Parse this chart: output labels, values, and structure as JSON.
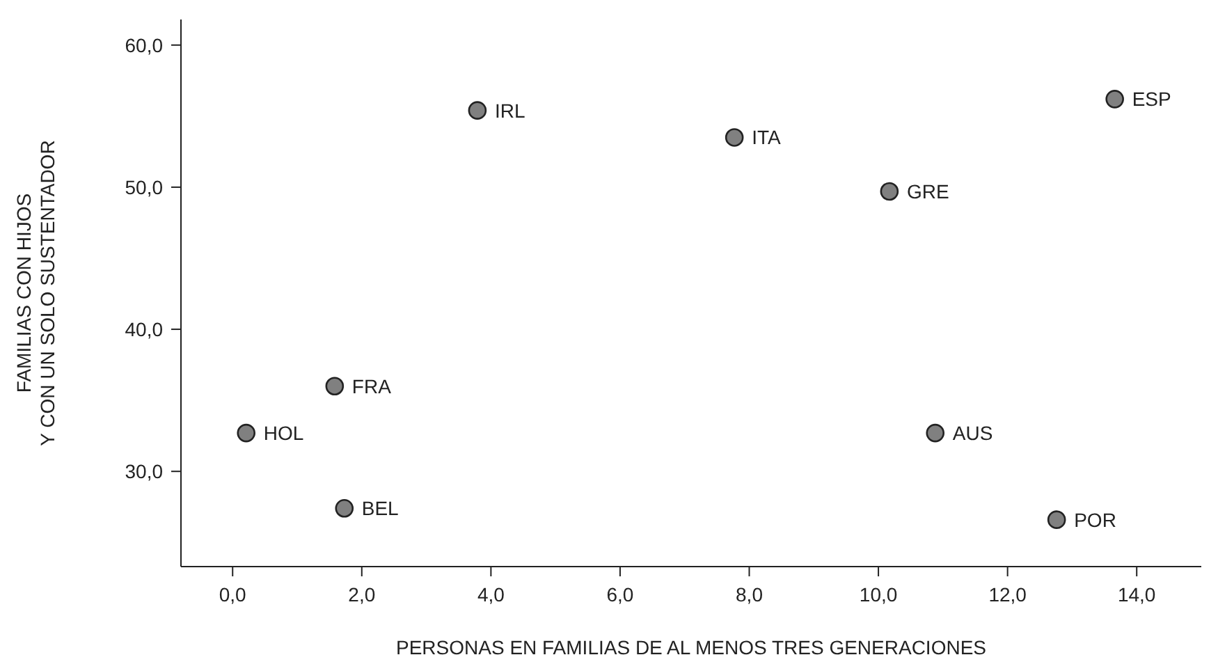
{
  "chart_data": {
    "type": "scatter",
    "xlabel": "PERSONAS EN FAMILIAS DE AL MENOS TRES GENERACIONES",
    "ylabel": "FAMILIAS CON HIJOS\nY CON UN SOLO SUSTENTADOR",
    "x": [
      0.21,
      1.58,
      1.73,
      3.79,
      7.77,
      10.17,
      10.88,
      12.76,
      13.66
    ],
    "values": [
      32.7,
      36.0,
      27.4,
      55.4,
      53.5,
      49.7,
      32.7,
      26.6,
      56.2
    ],
    "value_labels": [
      "HOL",
      "FRA",
      "BEL",
      "IRL",
      "ITA",
      "GRE",
      "AUS",
      "POR",
      "ESP"
    ],
    "color": "#808080",
    "marker": "circle",
    "xlim": [
      -0.8,
      15
    ],
    "xticks": [
      {
        "value": 0,
        "label": "0,0"
      },
      {
        "value": 2,
        "label": "2,0"
      },
      {
        "value": 4,
        "label": "4,0"
      },
      {
        "value": 6,
        "label": "6,0"
      },
      {
        "value": 8,
        "label": "8,0"
      },
      {
        "value": 10,
        "label": "10,0"
      },
      {
        "value": 12,
        "label": "12,0"
      },
      {
        "value": 14,
        "label": "14,0"
      }
    ],
    "ylim": [
      23.3,
      61.8
    ],
    "yticks": [
      {
        "value": 30,
        "label": "30,0"
      },
      {
        "value": 40,
        "label": "40,0"
      },
      {
        "value": 50,
        "label": "50,0"
      },
      {
        "value": 60,
        "label": "60,0"
      }
    ],
    "grid": false,
    "legend": false
  }
}
